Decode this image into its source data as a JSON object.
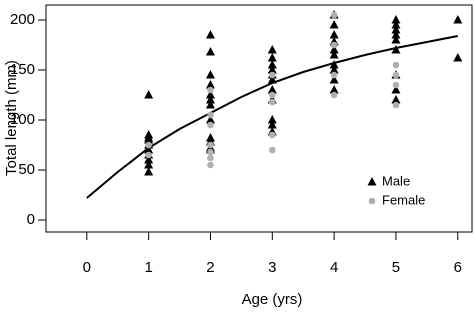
{
  "chart_data": {
    "type": "scatter",
    "x_label": "Age (yrs)",
    "y_label": "Total length (mm)",
    "xlim": [
      -0.66,
      6.23
    ],
    "ylim": [
      -12,
      215
    ],
    "xticks": [
      0,
      1,
      2,
      3,
      4,
      5,
      6
    ],
    "yticks": [
      0,
      50,
      100,
      150,
      200
    ],
    "legend": "bottom-right",
    "series": [
      {
        "name": "Male",
        "color": "#000000",
        "marker": "triangle",
        "x": [
          1,
          1,
          1,
          1,
          1,
          1,
          1,
          1,
          1,
          1,
          2,
          2,
          2,
          2,
          2,
          2,
          2,
          2,
          2,
          2,
          2,
          2,
          3,
          3,
          3,
          3,
          3,
          3,
          3,
          3,
          3,
          3,
          3,
          4,
          4,
          4,
          4,
          4,
          4,
          4,
          4,
          4,
          4,
          5,
          5,
          5,
          5,
          5,
          5,
          5,
          5,
          5,
          6,
          6
        ],
        "values": [
          125,
          85,
          82,
          80,
          75,
          70,
          65,
          60,
          55,
          48,
          185,
          168,
          145,
          135,
          125,
          120,
          115,
          100,
          82,
          78,
          72,
          70,
          170,
          162,
          155,
          150,
          145,
          140,
          130,
          120,
          100,
          95,
          88,
          205,
          195,
          185,
          178,
          170,
          165,
          155,
          150,
          140,
          130,
          200,
          195,
          190,
          185,
          180,
          170,
          145,
          130,
          120,
          200,
          162
        ]
      },
      {
        "name": "Female",
        "color": "#b0b0b0",
        "marker": "circle",
        "x": [
          1,
          1,
          2,
          2,
          2,
          2,
          2,
          2,
          2,
          3,
          3,
          3,
          3,
          3,
          4,
          4,
          4,
          4,
          5,
          5,
          5,
          5
        ],
        "values": [
          75,
          65,
          130,
          105,
          95,
          75,
          68,
          62,
          55,
          145,
          125,
          118,
          85,
          70,
          205,
          175,
          145,
          125,
          155,
          145,
          135,
          115
        ]
      }
    ],
    "curve": {
      "color": "#000000",
      "x": [
        0,
        0.5,
        1,
        1.5,
        2,
        2.5,
        3,
        3.5,
        4,
        4.5,
        5,
        5.5,
        6
      ],
      "values": [
        22,
        48,
        72,
        91,
        107,
        123,
        137,
        148,
        157,
        165,
        172,
        178,
        184
      ]
    }
  }
}
